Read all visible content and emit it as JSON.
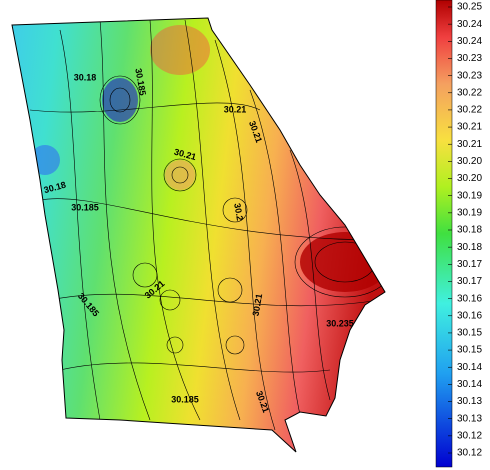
{
  "colorbar": {
    "ticks": [
      {
        "value": 30.25,
        "label": "30.25"
      },
      {
        "value": 30.245,
        "label": "30.24"
      },
      {
        "value": 30.24,
        "label": "30.24"
      },
      {
        "value": 30.235,
        "label": "30.23"
      },
      {
        "value": 30.23,
        "label": "30.23"
      },
      {
        "value": 30.225,
        "label": "30.22"
      },
      {
        "value": 30.22,
        "label": "30.22"
      },
      {
        "value": 30.215,
        "label": "30.21"
      },
      {
        "value": 30.21,
        "label": "30.21"
      },
      {
        "value": 30.205,
        "label": "30.20"
      },
      {
        "value": 30.2,
        "label": "30.20"
      },
      {
        "value": 30.195,
        "label": "30.19"
      },
      {
        "value": 30.19,
        "label": "30.19"
      },
      {
        "value": 30.185,
        "label": "30.18"
      },
      {
        "value": 30.18,
        "label": "30.18"
      },
      {
        "value": 30.175,
        "label": "30.17"
      },
      {
        "value": 30.17,
        "label": "30.17"
      },
      {
        "value": 30.165,
        "label": "30.16"
      },
      {
        "value": 30.16,
        "label": "30.16"
      },
      {
        "value": 30.155,
        "label": "30.15"
      },
      {
        "value": 30.15,
        "label": "30.15"
      },
      {
        "value": 30.145,
        "label": "30.14"
      },
      {
        "value": 30.14,
        "label": "30.14"
      },
      {
        "value": 30.135,
        "label": "30.13"
      },
      {
        "value": 30.13,
        "label": "30.13"
      },
      {
        "value": 30.125,
        "label": "30.12"
      },
      {
        "value": 30.12,
        "label": "30.12"
      }
    ]
  },
  "map": {
    "contour_labels": [
      "30.18",
      "30.185",
      "30.21",
      "30.21",
      "30.21",
      "30.18",
      "30.185",
      "30.2",
      "30.21",
      "30.185",
      "30.21",
      "30.235",
      "30.185",
      "30.21"
    ]
  }
}
